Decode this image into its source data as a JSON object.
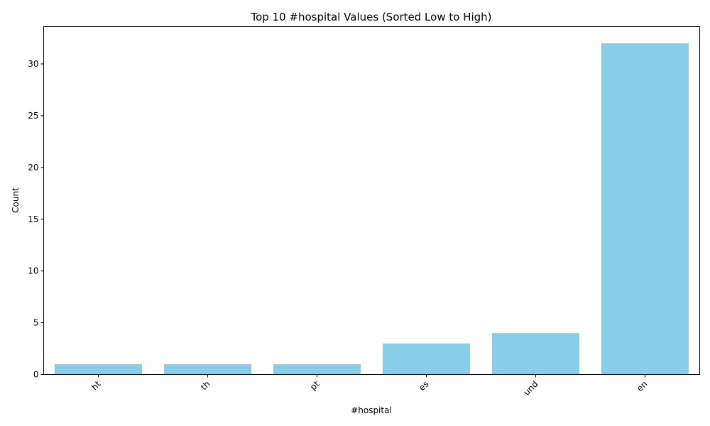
{
  "chart_data": {
    "type": "bar",
    "title": "Top 10 #hospital Values (Sorted Low to High)",
    "xlabel": "#hospital",
    "ylabel": "Count",
    "categories": [
      "ht",
      "th",
      "pt",
      "es",
      "und",
      "en"
    ],
    "values": [
      1,
      1,
      1,
      3,
      4,
      32
    ],
    "ylim": [
      0,
      33.6
    ],
    "yticks": [
      0,
      5,
      10,
      15,
      20,
      25,
      30
    ],
    "bar_color": "#87ceeb",
    "grid": false,
    "legend": "none"
  }
}
